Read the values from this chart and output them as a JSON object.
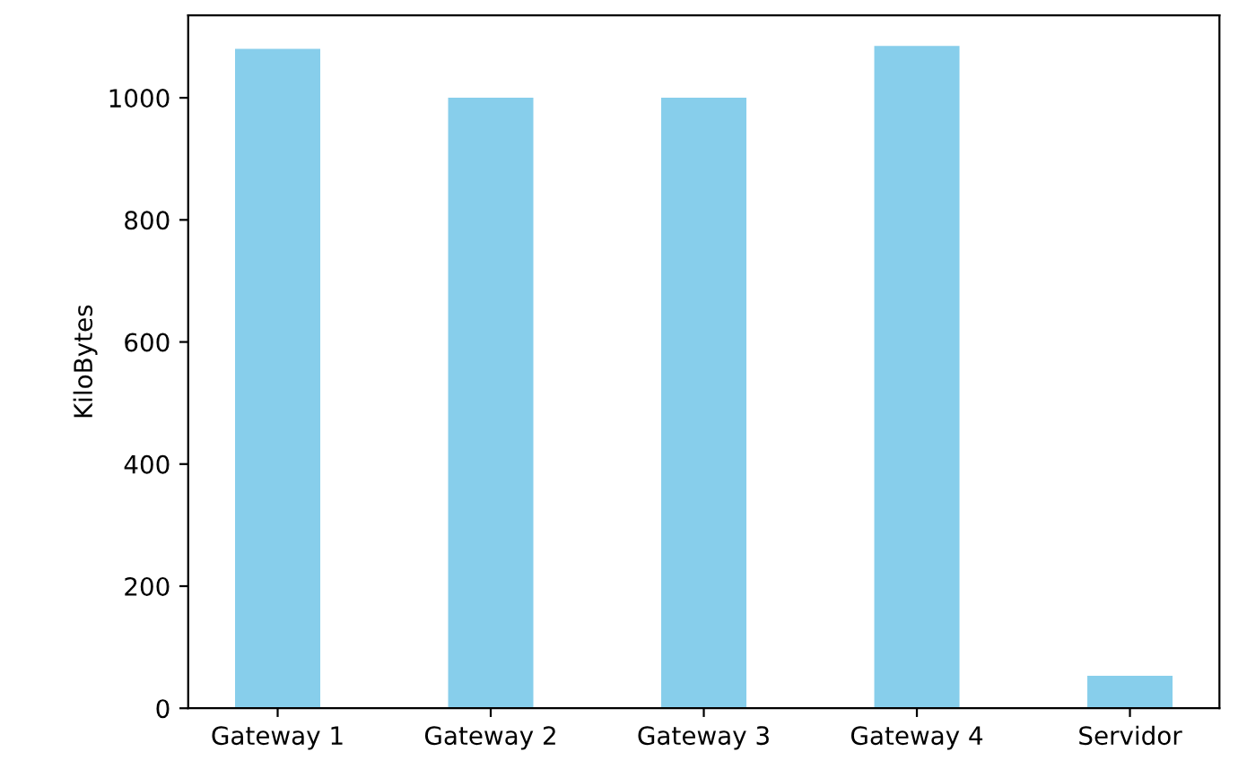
{
  "chart_data": {
    "type": "bar",
    "ylabel": "KiloBytes",
    "categories": [
      "Gateway 1",
      "Gateway 2",
      "Gateway 3",
      "Gateway 4",
      "Servidor"
    ],
    "values": [
      1080,
      1000,
      1000,
      1085,
      53
    ],
    "color": "#87ceeb",
    "ylim": [
      0,
      1135
    ],
    "yticks": [
      0,
      200,
      400,
      600,
      800,
      1000
    ],
    "grid": false,
    "legend": false
  }
}
